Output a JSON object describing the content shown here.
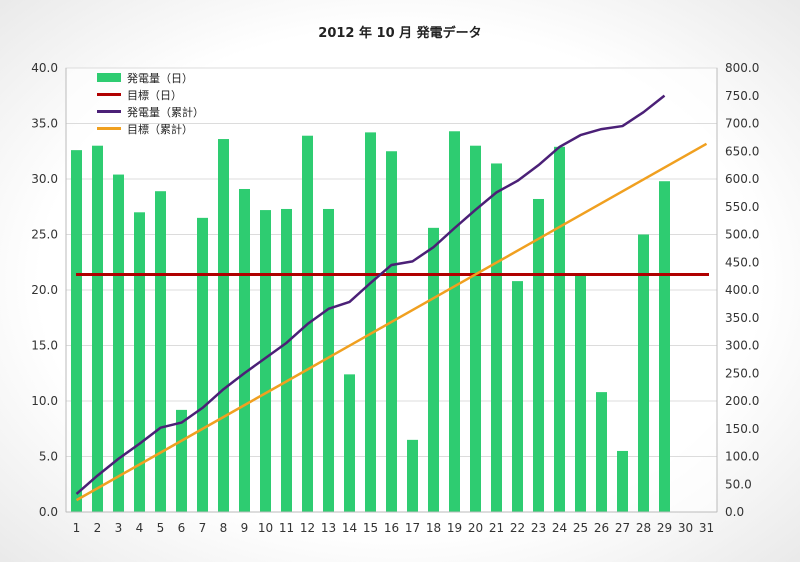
{
  "chart_data": {
    "type": "bar",
    "title": "2012 年 10 月 発電データ",
    "categories": [
      "1",
      "2",
      "3",
      "4",
      "5",
      "6",
      "7",
      "8",
      "9",
      "10",
      "11",
      "12",
      "13",
      "14",
      "15",
      "16",
      "17",
      "18",
      "19",
      "20",
      "21",
      "22",
      "23",
      "24",
      "25",
      "26",
      "27",
      "28",
      "29",
      "30",
      "31"
    ],
    "left_axis": {
      "ylim": [
        0,
        40
      ],
      "ticks": [
        "0.0",
        "5.0",
        "10.0",
        "15.0",
        "20.0",
        "25.0",
        "30.0",
        "35.0",
        "40.0"
      ]
    },
    "right_axis": {
      "ylim": [
        0,
        800
      ],
      "ticks": [
        "0.0",
        "50.0",
        "100.0",
        "150.0",
        "200.0",
        "250.0",
        "300.0",
        "350.0",
        "400.0",
        "450.0",
        "500.0",
        "550.0",
        "600.0",
        "650.0",
        "700.0",
        "750.0",
        "800.0"
      ]
    },
    "series": [
      {
        "name": "発電量（日）",
        "kind": "bar",
        "axis": "left",
        "color": "#2ecc71",
        "values": [
          32.6,
          33.0,
          30.4,
          27.0,
          28.9,
          9.2,
          26.5,
          33.6,
          29.1,
          27.2,
          27.3,
          33.9,
          27.3,
          12.4,
          34.2,
          32.5,
          6.5,
          25.6,
          34.3,
          33.0,
          31.4,
          20.8,
          28.2,
          32.9,
          21.3,
          10.8,
          5.5,
          25.0,
          29.8,
          null,
          null
        ]
      },
      {
        "name": "目標（日）",
        "kind": "hline",
        "axis": "left",
        "color": "#b00000",
        "value": 21.4
      },
      {
        "name": "発電量（累計）",
        "kind": "line",
        "axis": "right",
        "color": "#4b2077",
        "values": [
          32.6,
          65.6,
          96.0,
          123.0,
          151.9,
          161.1,
          187.6,
          221.2,
          250.3,
          277.5,
          304.8,
          338.7,
          366.0,
          378.4,
          412.6,
          445.1,
          451.6,
          477.2,
          511.5,
          544.5,
          575.9,
          596.7,
          624.9,
          657.8,
          679.1,
          689.9,
          695.4,
          720.4,
          750.2,
          null,
          null
        ]
      },
      {
        "name": "目標（累計）",
        "kind": "line",
        "axis": "right",
        "color": "#f0a020",
        "values": [
          21.4,
          42.8,
          64.2,
          85.6,
          107.0,
          128.4,
          149.8,
          171.2,
          192.6,
          214.0,
          235.4,
          256.8,
          278.2,
          299.6,
          321.0,
          342.4,
          363.8,
          385.2,
          406.6,
          428.0,
          449.4,
          470.8,
          492.2,
          513.6,
          535.0,
          556.4,
          577.8,
          599.2,
          620.6,
          642.0,
          663.4
        ]
      }
    ],
    "grid": true,
    "legend_position": "top-left"
  }
}
